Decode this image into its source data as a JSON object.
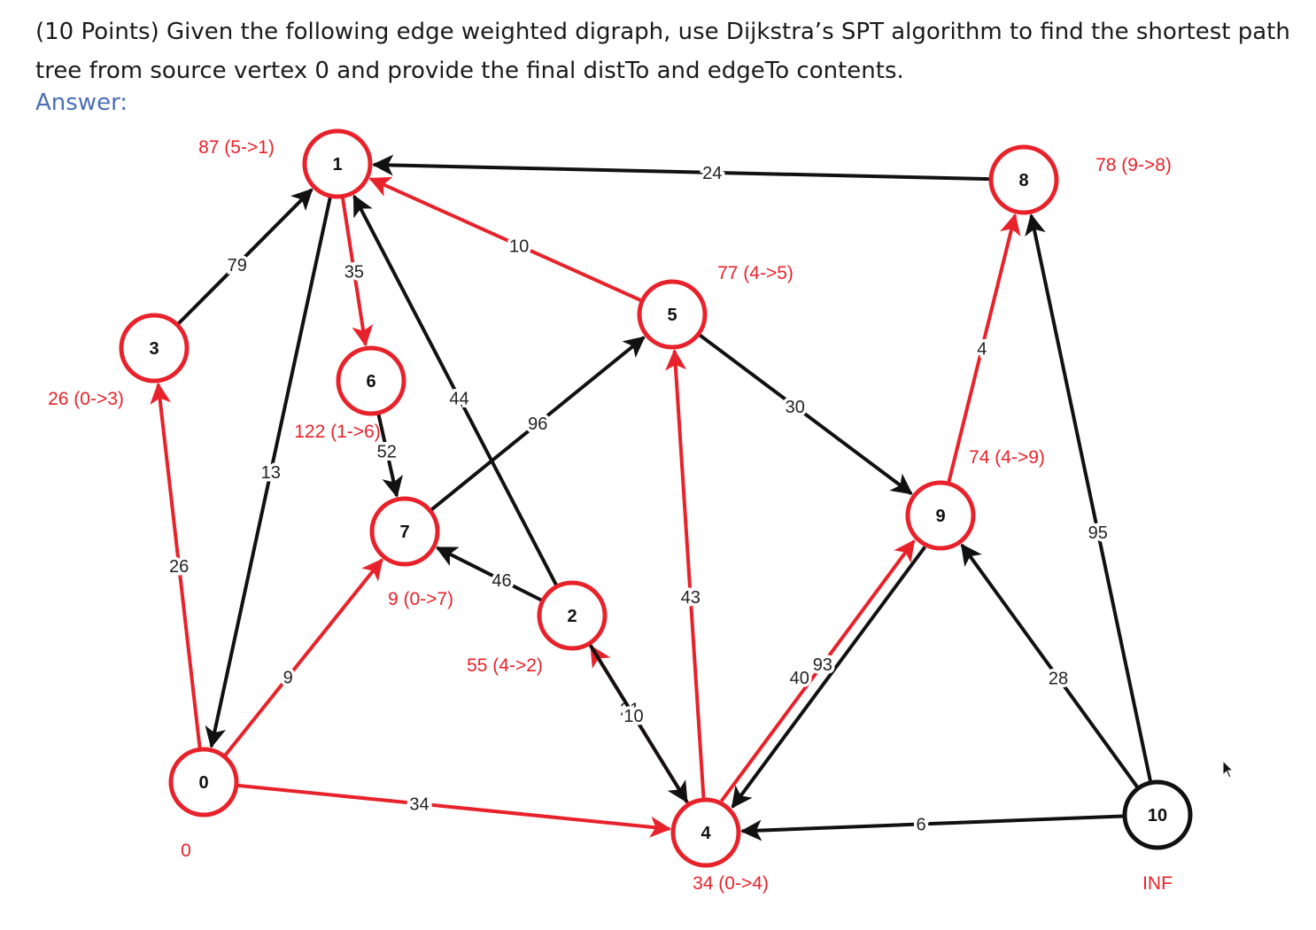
{
  "question": {
    "text": "(10 Points) Given the following edge weighted digraph, use Dijkstra’s SPT algorithm to find the shortest path tree from source vertex 0 and provide the final distTo and edgeTo contents."
  },
  "answer_label": "Answer:",
  "colors": {
    "tree": "#e8222a",
    "edge": "#111111",
    "node_red": "#e8222a",
    "node_black": "#111111",
    "answer": "#4a6fb5"
  },
  "vertices": [
    {
      "id": "0",
      "annotation": "0",
      "in_tree": true
    },
    {
      "id": "1",
      "annotation": "87 (5->1)",
      "in_tree": true
    },
    {
      "id": "2",
      "annotation": "55 (4->2)",
      "in_tree": true
    },
    {
      "id": "3",
      "annotation": "26 (0->3)",
      "in_tree": true
    },
    {
      "id": "4",
      "annotation": "34 (0->4)",
      "in_tree": true
    },
    {
      "id": "5",
      "annotation": "77 (4->5)",
      "in_tree": true
    },
    {
      "id": "6",
      "annotation": "122 (1->6)",
      "in_tree": true
    },
    {
      "id": "7",
      "annotation": "9 (0->7)",
      "in_tree": true
    },
    {
      "id": "8",
      "annotation": "78 (9->8)",
      "in_tree": true
    },
    {
      "id": "9",
      "annotation": "74 (4->9)",
      "in_tree": true
    },
    {
      "id": "10",
      "annotation": "INF",
      "in_tree": false
    }
  ],
  "edges": [
    {
      "from": "8",
      "to": "1",
      "weight": "24",
      "tree": false
    },
    {
      "from": "3",
      "to": "1",
      "weight": "79",
      "tree": false
    },
    {
      "from": "1",
      "to": "0",
      "weight": "13",
      "tree": false
    },
    {
      "from": "1",
      "to": "6",
      "weight": "35",
      "tree": true
    },
    {
      "from": "5",
      "to": "1",
      "weight": "10",
      "tree": true
    },
    {
      "from": "2",
      "to": "1",
      "weight": "44",
      "tree": false
    },
    {
      "from": "0",
      "to": "3",
      "weight": "26",
      "tree": true
    },
    {
      "from": "6",
      "to": "7",
      "weight": "52",
      "tree": false
    },
    {
      "from": "7",
      "to": "5",
      "weight": "96",
      "tree": false
    },
    {
      "from": "0",
      "to": "7",
      "weight": "9",
      "tree": true
    },
    {
      "from": "2",
      "to": "7",
      "weight": "46",
      "tree": false
    },
    {
      "from": "0",
      "to": "4",
      "weight": "34",
      "tree": true
    },
    {
      "from": "4",
      "to": "2",
      "weight": "21",
      "tree": true
    },
    {
      "from": "2",
      "to": "4",
      "weight": "10",
      "tree": false
    },
    {
      "from": "4",
      "to": "5",
      "weight": "43",
      "tree": true
    },
    {
      "from": "5",
      "to": "9",
      "weight": "30",
      "tree": false
    },
    {
      "from": "4",
      "to": "9",
      "weight": "40",
      "tree": true
    },
    {
      "from": "9",
      "to": "4",
      "weight": "93",
      "tree": false
    },
    {
      "from": "9",
      "to": "8",
      "weight": "4",
      "tree": true
    },
    {
      "from": "10",
      "to": "8",
      "weight": "95",
      "tree": false
    },
    {
      "from": "10",
      "to": "9",
      "weight": "28",
      "tree": false
    },
    {
      "from": "10",
      "to": "4",
      "weight": "6",
      "tree": false
    }
  ]
}
